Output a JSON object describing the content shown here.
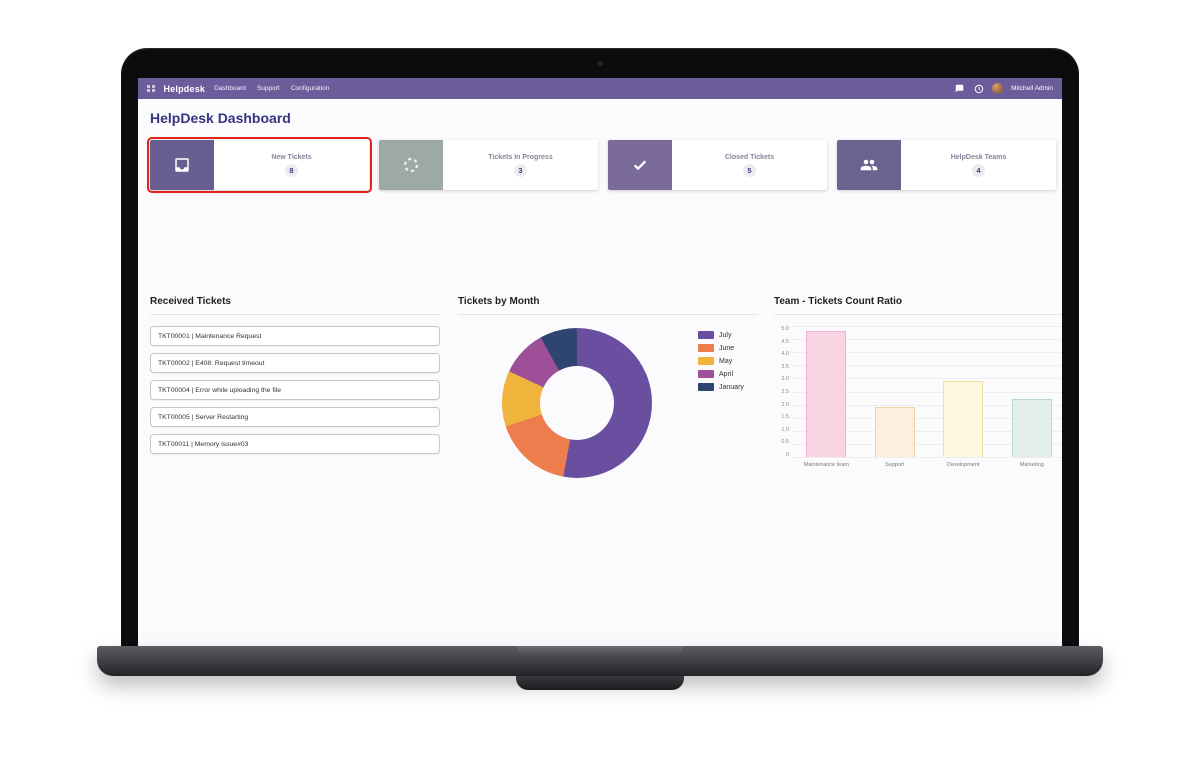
{
  "navbar": {
    "brand": "Helpdesk",
    "menu": [
      "Dashboard",
      "Support",
      "Configuration"
    ],
    "user": "Mitchell Admin",
    "icons": {
      "apps": "grid-icon",
      "messages": "chat-bubble-icon",
      "activities": "clock-icon"
    }
  },
  "page": {
    "title": "HelpDesk Dashboard"
  },
  "cards": [
    {
      "label": "New Tickets",
      "count": "8",
      "icon": "inbox-icon",
      "accent": "#695e90",
      "highlighted": true
    },
    {
      "label": "Tickets In Progress",
      "count": "3",
      "icon": "spinner-icon",
      "accent": "#9da9a4",
      "highlighted": false
    },
    {
      "label": "Closed Tickets",
      "count": "5",
      "icon": "check-icon",
      "accent": "#7a6a9a",
      "highlighted": false
    },
    {
      "label": "HelpDesk Teams",
      "count": "4",
      "icon": "people-icon",
      "accent": "#6b628f",
      "highlighted": false
    }
  ],
  "received": {
    "title": "Received Tickets",
    "tickets": [
      "TKT00001 | Maintenance Request",
      "TKT00002 | E408: Request timeout",
      "TKT00004 | Error while uploading the file",
      "TKT00005 | Server Restarting",
      "TKT00011 | Memory issue#03"
    ]
  },
  "chart_data": [
    {
      "type": "pie",
      "donut": true,
      "title": "Tickets by Month",
      "start_angle_deg": -29,
      "slices": [
        {
          "label": "January",
          "value": 8,
          "color": "#2e4571"
        },
        {
          "label": "July",
          "value": 53,
          "color": "#6a4fa0"
        },
        {
          "label": "June",
          "value": 17,
          "color": "#ee7d4e"
        },
        {
          "label": "May",
          "value": 12,
          "color": "#f0b43c"
        },
        {
          "label": "April",
          "value": 10,
          "color": "#9d4f97"
        }
      ],
      "legend": [
        "July",
        "June",
        "May",
        "April",
        "January"
      ],
      "legend_position": "right"
    },
    {
      "type": "bar",
      "title": "Team - Tickets Count Ratio",
      "categories": [
        "Maintenance team",
        "Support",
        "Development",
        "Marketing"
      ],
      "values": [
        4.8,
        1.9,
        2.9,
        2.2
      ],
      "fills": [
        "#f9d5e4",
        "#fdeedd",
        "#fcf8df",
        "#e2efeb"
      ],
      "borders": [
        "#f0b3cf",
        "#f4cfa6",
        "#ece0a4",
        "#bcd9d0"
      ],
      "ylim": [
        0,
        5
      ],
      "yticks": [
        "5.0",
        "4.5",
        "4.0",
        "3.5",
        "3.0",
        "2.5",
        "2.0",
        "1.5",
        "1.0",
        "0.5",
        "0"
      ],
      "grid": true
    }
  ]
}
